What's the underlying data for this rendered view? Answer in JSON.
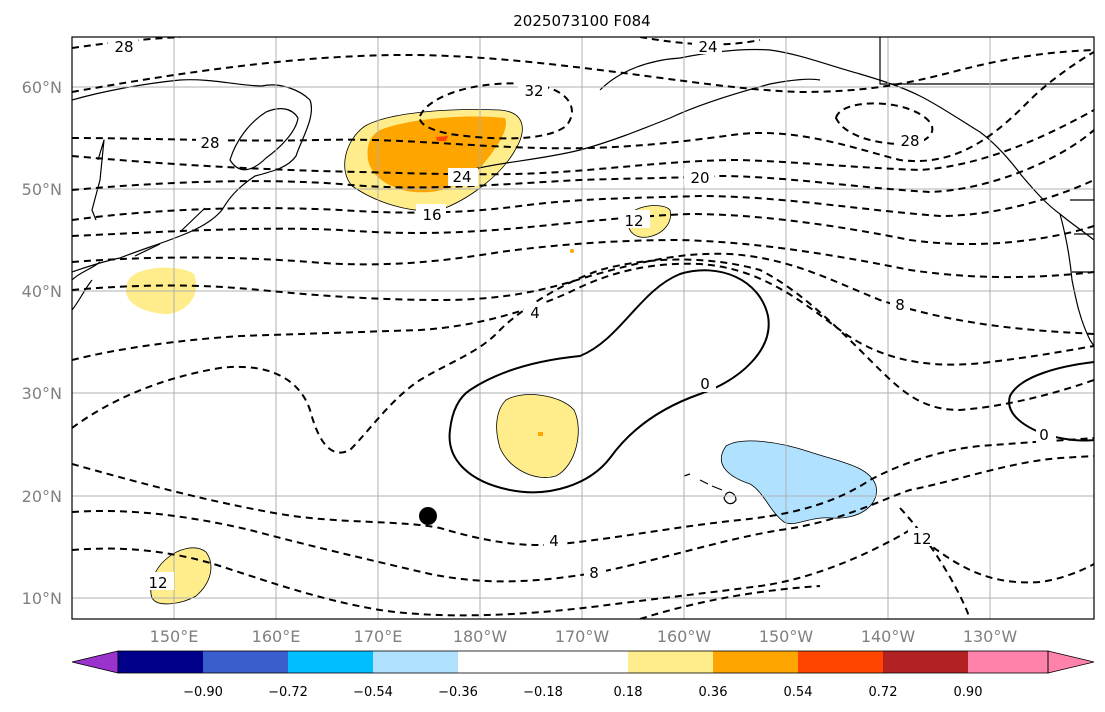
{
  "title": "2025073100 F084",
  "colors": {
    "c1": "#9a32cd",
    "c2": "#00008b",
    "c3": "#3a5fcd",
    "c4": "#00bfff",
    "c5": "#b0e2ff",
    "c6": "#ffffff",
    "c7": "#ffec8b",
    "c8": "#ffa500",
    "c9": "#ff4500",
    "c10": "#b22222",
    "c11": "#ff82ab"
  },
  "lat_ticks": [
    "10°N",
    "20°N",
    "30°N",
    "40°N",
    "50°N",
    "60°N"
  ],
  "lon_ticks": [
    "150°E",
    "160°E",
    "170°E",
    "180°W",
    "170°W",
    "160°W",
    "150°W",
    "140°W",
    "130°W"
  ],
  "colorbar": {
    "ticks": [
      "−0.90",
      "−0.72",
      "−0.54",
      "−0.36",
      "−0.18",
      "0.18",
      "0.36",
      "0.54",
      "0.72",
      "0.90"
    ]
  },
  "contour_labels": [
    "28",
    "24",
    "32",
    "28",
    "28",
    "24",
    "16",
    "20",
    "12",
    "4",
    "0",
    "8",
    "0",
    "4",
    "8",
    "12",
    "12"
  ],
  "marker": {
    "name": "storm-position-dot"
  }
}
